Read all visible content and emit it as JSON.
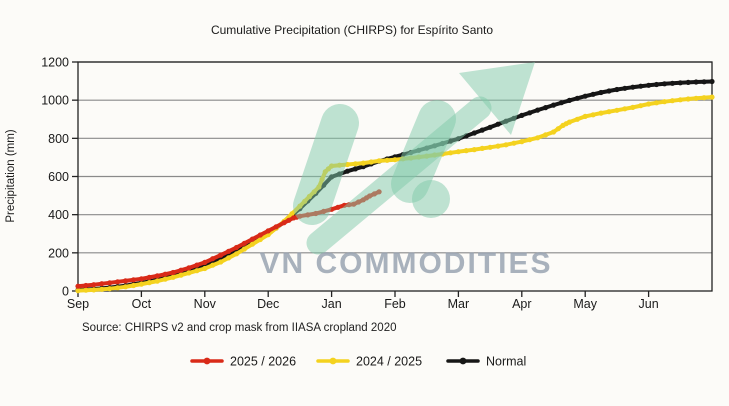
{
  "title": "Cumulative Precipitation (CHIRPS) for Espírito Santo",
  "source_note": "Source: CHIRPS v2 and crop mask from IIASA cropland 2020",
  "watermark": {
    "text": "VN COMMODITIES",
    "text_color": "#929fad",
    "shape_color": "#7fc9aa"
  },
  "chart_data": {
    "type": "line",
    "title": "Cumulative Precipitation (CHIRPS) for Espírito Santo",
    "xlabel": "",
    "ylabel": "Precipitation (mm)",
    "x_unit": "months since Sep 1",
    "xtick_labels": [
      "Sep",
      "Oct",
      "Nov",
      "Dec",
      "Jan",
      "Feb",
      "Mar",
      "Apr",
      "May",
      "Jun"
    ],
    "xlim": [
      0,
      10
    ],
    "ylim": [
      0,
      1200
    ],
    "yticks": [
      0,
      200,
      400,
      600,
      800,
      1000,
      1200
    ],
    "grid": "horizontal",
    "legend_position": "bottom",
    "series": [
      {
        "name": "2025 / 2026",
        "color": "#d92a18",
        "points": [
          [
            0,
            25
          ],
          [
            0.25,
            33
          ],
          [
            0.5,
            43
          ],
          [
            0.75,
            53
          ],
          [
            1,
            64
          ],
          [
            1.25,
            79
          ],
          [
            1.5,
            97
          ],
          [
            1.75,
            121
          ],
          [
            2,
            150
          ],
          [
            2.25,
            188
          ],
          [
            2.5,
            228
          ],
          [
            2.75,
            272
          ],
          [
            3,
            315
          ],
          [
            3.25,
            358
          ],
          [
            3.4,
            383
          ],
          [
            3.5,
            392
          ],
          [
            3.75,
            406
          ],
          [
            4,
            428
          ],
          [
            4.2,
            449
          ],
          [
            4.35,
            455
          ],
          [
            4.5,
            478
          ],
          [
            4.6,
            498
          ],
          [
            4.75,
            520
          ]
        ]
      },
      {
        "name": "2024 / 2025",
        "color": "#f4d21f",
        "points": [
          [
            0,
            2
          ],
          [
            0.25,
            6
          ],
          [
            0.5,
            12
          ],
          [
            0.75,
            22
          ],
          [
            1,
            36
          ],
          [
            1.25,
            52
          ],
          [
            1.5,
            72
          ],
          [
            1.75,
            95
          ],
          [
            2,
            118
          ],
          [
            2.25,
            152
          ],
          [
            2.5,
            195
          ],
          [
            2.75,
            245
          ],
          [
            3,
            295
          ],
          [
            3.25,
            365
          ],
          [
            3.5,
            445
          ],
          [
            3.65,
            495
          ],
          [
            3.8,
            545
          ],
          [
            3.9,
            625
          ],
          [
            4,
            655
          ],
          [
            4.25,
            663
          ],
          [
            4.5,
            670
          ],
          [
            4.75,
            682
          ],
          [
            5,
            688
          ],
          [
            5.25,
            697
          ],
          [
            5.5,
            707
          ],
          [
            5.75,
            718
          ],
          [
            6,
            730
          ],
          [
            6.25,
            741
          ],
          [
            6.5,
            753
          ],
          [
            6.75,
            766
          ],
          [
            7,
            783
          ],
          [
            7.25,
            803
          ],
          [
            7.5,
            833
          ],
          [
            7.65,
            868
          ],
          [
            7.75,
            885
          ],
          [
            8,
            915
          ],
          [
            8.25,
            932
          ],
          [
            8.5,
            947
          ],
          [
            8.75,
            962
          ],
          [
            9,
            980
          ],
          [
            9.25,
            992
          ],
          [
            9.5,
            1002
          ],
          [
            9.75,
            1010
          ],
          [
            10,
            1016
          ]
        ]
      },
      {
        "name": "Normal",
        "color": "#161616",
        "points": [
          [
            0,
            5
          ],
          [
            0.25,
            10
          ],
          [
            0.5,
            18
          ],
          [
            0.75,
            28
          ],
          [
            1,
            42
          ],
          [
            1.25,
            58
          ],
          [
            1.5,
            78
          ],
          [
            1.75,
            103
          ],
          [
            2,
            132
          ],
          [
            2.25,
            168
          ],
          [
            2.5,
            208
          ],
          [
            2.75,
            252
          ],
          [
            3,
            298
          ],
          [
            3.25,
            362
          ],
          [
            3.5,
            432
          ],
          [
            3.75,
            512
          ],
          [
            4,
            598
          ],
          [
            4.25,
            628
          ],
          [
            4.5,
            652
          ],
          [
            4.75,
            680
          ],
          [
            5,
            703
          ],
          [
            5.25,
            726
          ],
          [
            5.5,
            749
          ],
          [
            5.75,
            773
          ],
          [
            6,
            798
          ],
          [
            6.25,
            828
          ],
          [
            6.5,
            858
          ],
          [
            6.75,
            890
          ],
          [
            7,
            920
          ],
          [
            7.25,
            948
          ],
          [
            7.5,
            974
          ],
          [
            7.75,
            999
          ],
          [
            8,
            1021
          ],
          [
            8.25,
            1040
          ],
          [
            8.5,
            1056
          ],
          [
            8.75,
            1068
          ],
          [
            9,
            1078
          ],
          [
            9.25,
            1086
          ],
          [
            9.5,
            1091
          ],
          [
            9.75,
            1095
          ],
          [
            10,
            1098
          ]
        ]
      }
    ]
  }
}
